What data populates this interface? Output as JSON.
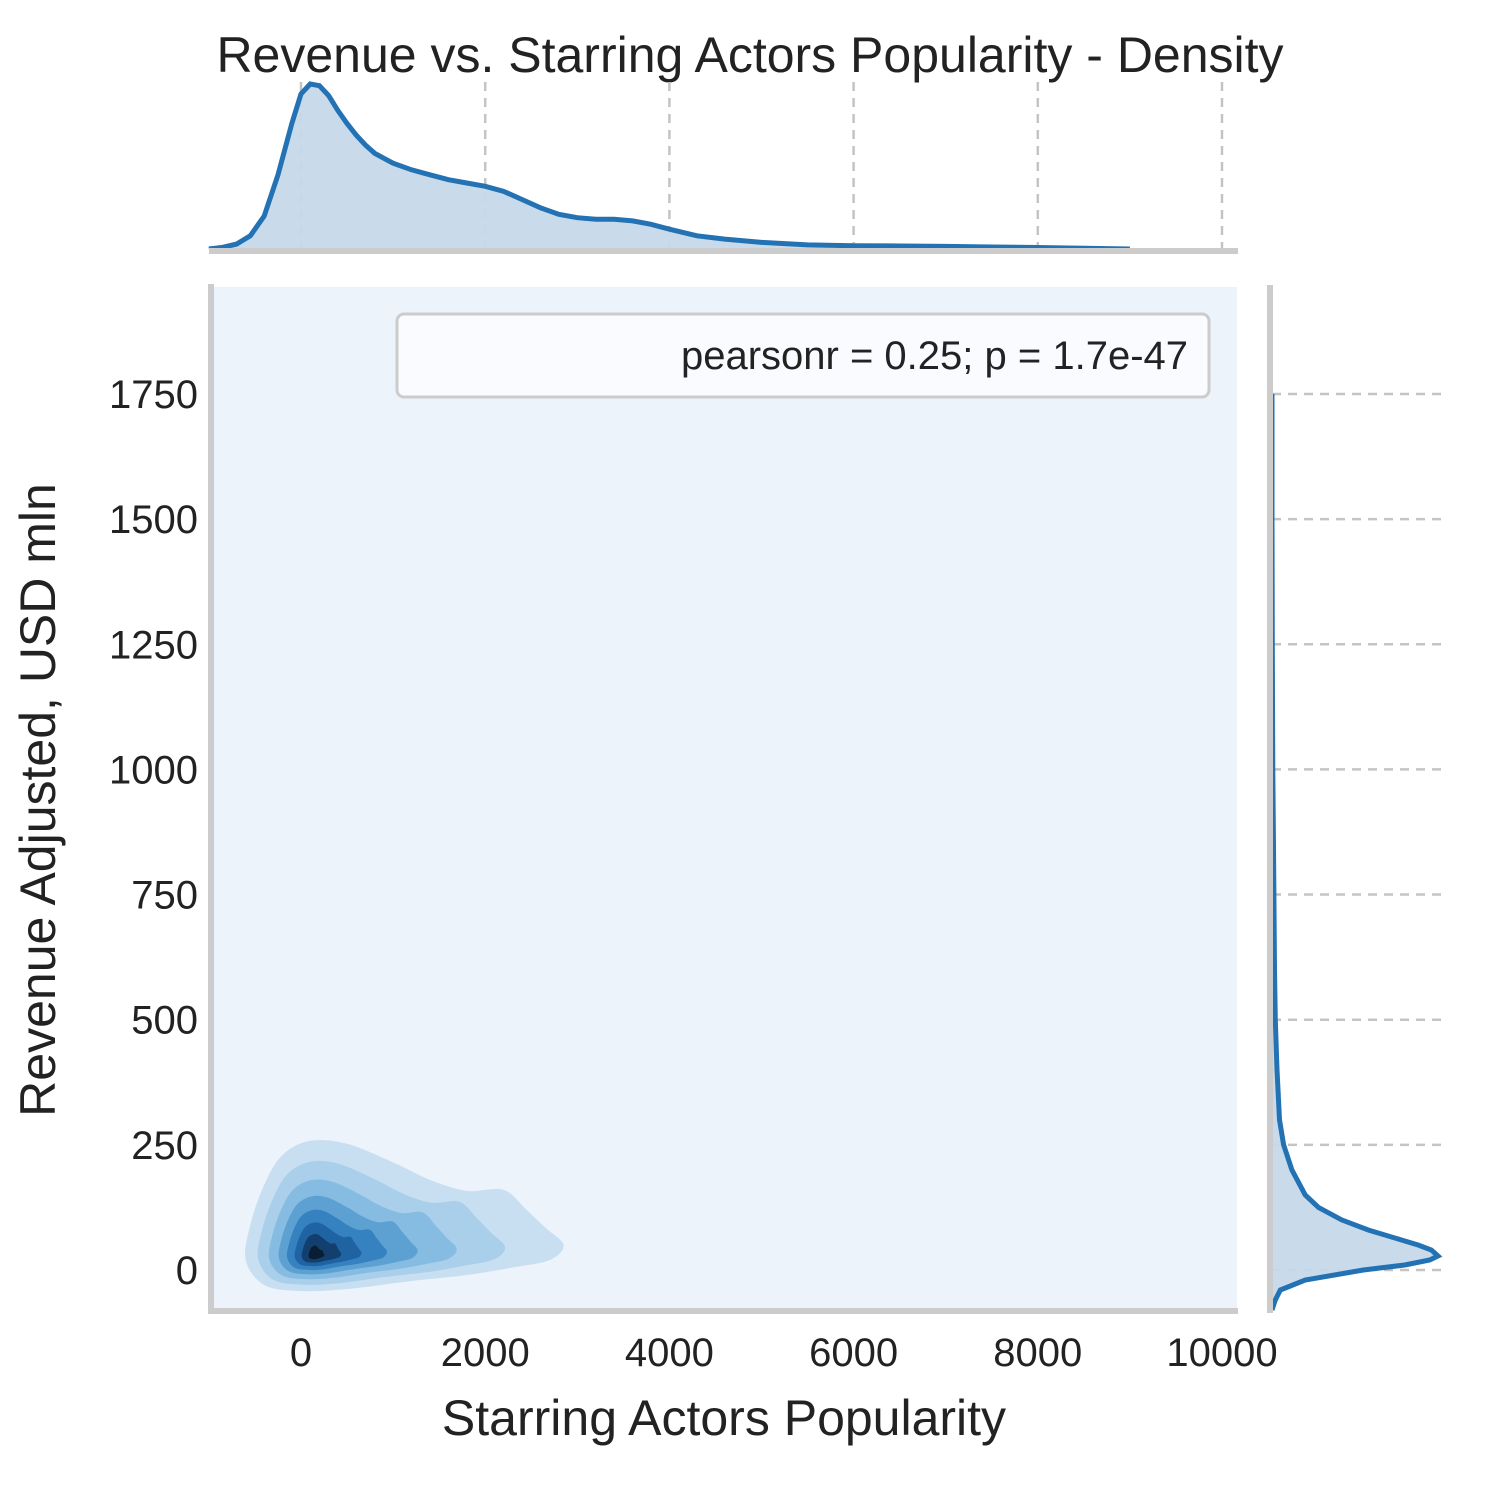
{
  "chart_data": {
    "type": "kde-jointplot",
    "title": "Revenue vs. Starring Actors Popularity - Density",
    "xlabel": "Starring Actors Popularity",
    "ylabel": "Revenue Adjusted, USD mln",
    "xlim": [
      -1000,
      10000
    ],
    "ylim": [
      -80,
      1960
    ],
    "xticks": [
      0,
      2000,
      4000,
      6000,
      8000,
      10000
    ],
    "yticks": [
      0,
      250,
      500,
      750,
      1000,
      1250,
      1500,
      1750
    ],
    "xtick_labels": [
      "0",
      "2000",
      "4000",
      "6000",
      "8000",
      "10000"
    ],
    "ytick_labels": [
      "0",
      "250",
      "500",
      "750",
      "1000",
      "1250",
      "1500",
      "1750"
    ],
    "annotation": "pearsonr = 0.25; p = 1.7e-47",
    "legend_position": "top-right",
    "colors": {
      "line": "#2372b4",
      "marginal_fill": "#c6d9ea",
      "background": "#ecf3fb",
      "contour_levels": [
        "#c8dff2",
        "#a9cfeb",
        "#86bce2",
        "#5da1d3",
        "#3681c0",
        "#1f63a3",
        "#123f6e",
        "#0a1e33"
      ]
    },
    "density_peak": {
      "x": 150,
      "y": 28
    },
    "marginal_x": {
      "x": [
        -1000,
        -850,
        -700,
        -550,
        -400,
        -250,
        -100,
        0,
        100,
        200,
        300,
        400,
        500,
        600,
        700,
        800,
        900,
        1000,
        1200,
        1400,
        1600,
        1800,
        2000,
        2200,
        2400,
        2600,
        2800,
        3000,
        3200,
        3400,
        3600,
        3800,
        4000,
        4300,
        4600,
        5000,
        5500,
        6000,
        6500,
        7000,
        7500,
        8000,
        8500,
        9000
      ],
      "density": [
        0.0,
        0.01,
        0.03,
        0.08,
        0.2,
        0.45,
        0.76,
        0.94,
        1.0,
        0.99,
        0.93,
        0.84,
        0.76,
        0.69,
        0.63,
        0.58,
        0.55,
        0.52,
        0.48,
        0.45,
        0.42,
        0.4,
        0.38,
        0.35,
        0.3,
        0.25,
        0.21,
        0.19,
        0.18,
        0.18,
        0.17,
        0.15,
        0.12,
        0.08,
        0.06,
        0.04,
        0.025,
        0.02,
        0.018,
        0.016,
        0.012,
        0.009,
        0.005,
        0.0
      ]
    },
    "marginal_y": {
      "y": [
        -80,
        -60,
        -40,
        -20,
        0,
        10,
        20,
        28,
        40,
        50,
        60,
        80,
        100,
        125,
        150,
        200,
        250,
        300,
        400,
        500,
        600,
        800,
        1000,
        1250,
        1500,
        1750
      ],
      "density": [
        0.0,
        0.02,
        0.05,
        0.2,
        0.55,
        0.8,
        0.95,
        1.0,
        0.96,
        0.88,
        0.78,
        0.58,
        0.42,
        0.28,
        0.2,
        0.12,
        0.07,
        0.045,
        0.03,
        0.02,
        0.015,
        0.01,
        0.005,
        0.002,
        0.0,
        0.0
      ]
    }
  }
}
